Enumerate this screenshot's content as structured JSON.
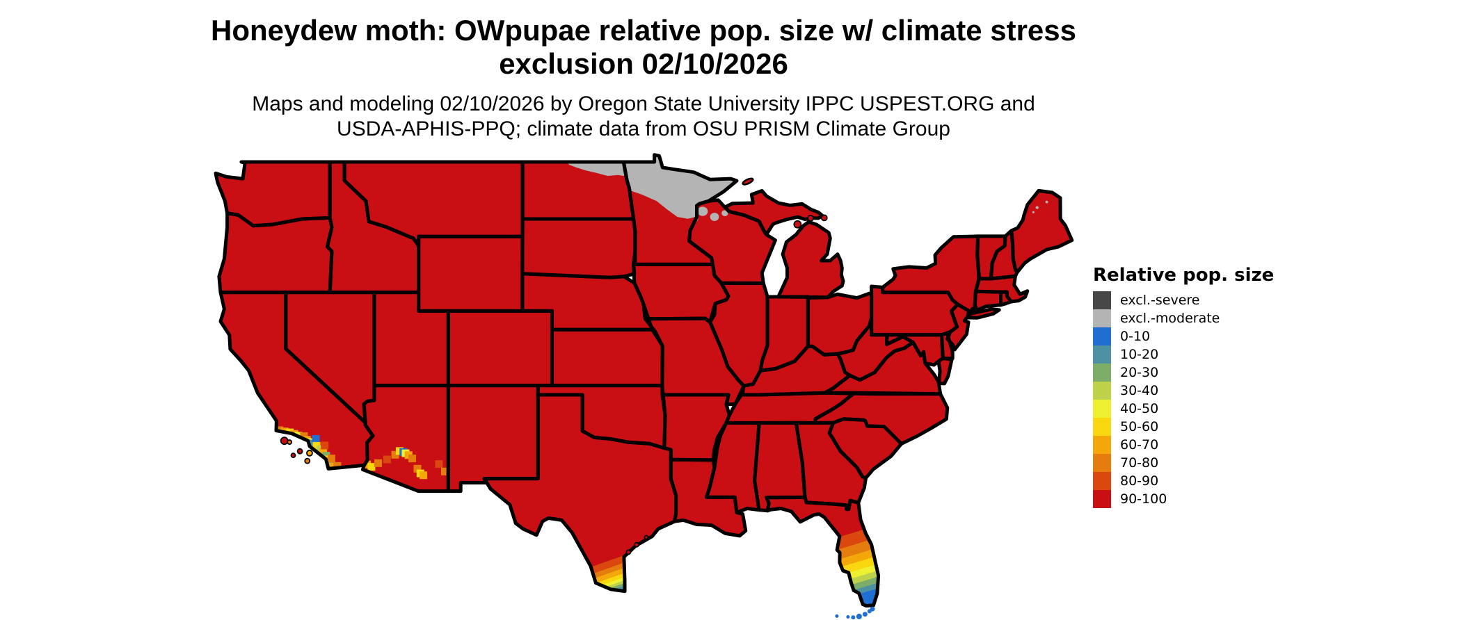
{
  "figure": {
    "title_line1": "Honeydew moth: OWpupae relative pop. size w/ climate stress",
    "title_line2": "exclusion 02/10/2026",
    "subtitle_line1": "Maps and modeling 02/10/2026 by Oregon State University IPPC USPEST.ORG and",
    "subtitle_line2": "USDA-APHIS-PPQ; climate data from OSU PRISM Climate Group"
  },
  "legend": {
    "title": "Relative pop. size",
    "items": [
      {
        "label": "excl.-severe",
        "color": "#474747"
      },
      {
        "label": "excl.-moderate",
        "color": "#b4b4b4"
      },
      {
        "label": "0-10",
        "color": "#1f6fd2"
      },
      {
        "label": "10-20",
        "color": "#4d92a3"
      },
      {
        "label": "20-30",
        "color": "#7ead69"
      },
      {
        "label": "30-40",
        "color": "#bdd14b"
      },
      {
        "label": "40-50",
        "color": "#eef032"
      },
      {
        "label": "50-60",
        "color": "#fad80f"
      },
      {
        "label": "60-70",
        "color": "#f3a70a"
      },
      {
        "label": "70-80",
        "color": "#e57c0e"
      },
      {
        "label": "80-90",
        "color": "#da470f"
      },
      {
        "label": "90-100",
        "color": "#c90f14"
      }
    ]
  },
  "map": {
    "background_color": "#ffffff",
    "border_color": "#000000",
    "default_class": "90-100",
    "exclusion_moderate_areas": [
      "northern Minnesota",
      "northern edge of North Dakota",
      "patches in northwestern Wisconsin",
      "small patches in northern Maine"
    ],
    "gradient_areas": [
      "southern Florida peninsula grading 90-100 down to 0-10 at tip and Keys",
      "southern tip of Texas grading 90-100 down to 0-10"
    ],
    "speckled_areas": [
      "southern California coast",
      "southern Arizona"
    ]
  }
}
